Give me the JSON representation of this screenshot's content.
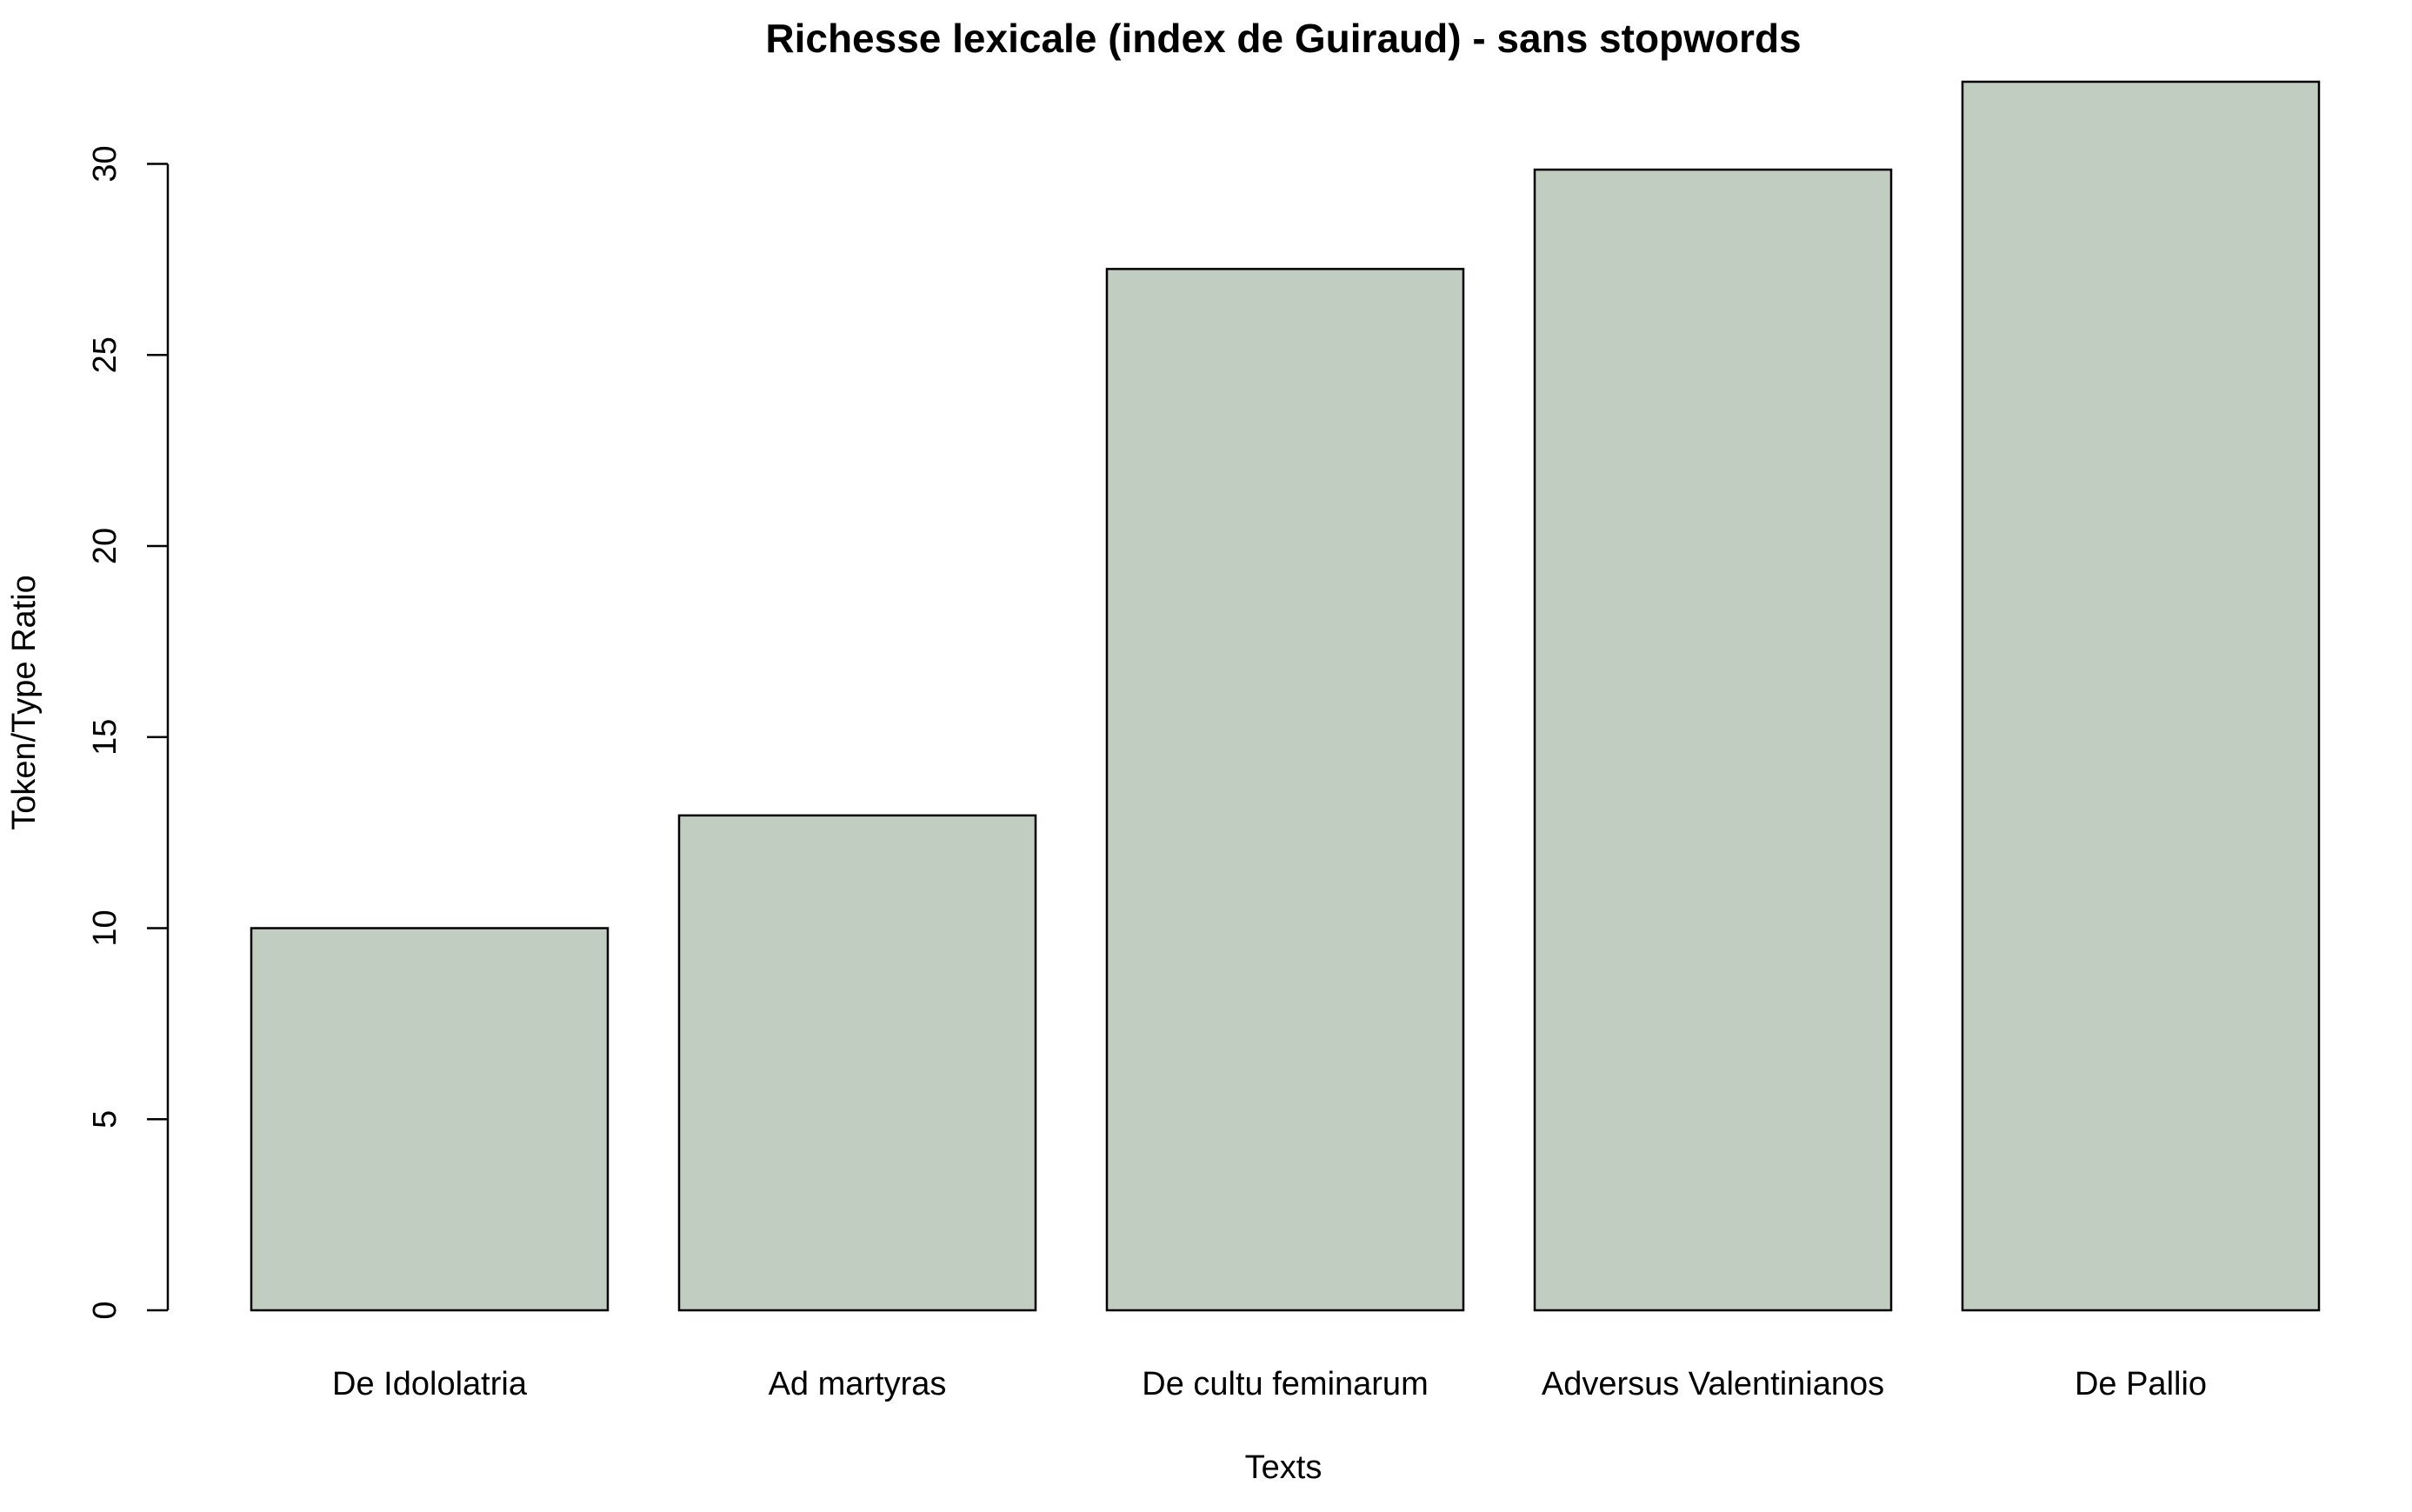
{
  "chart_data": {
    "type": "bar",
    "title": "Richesse lexicale (index de Guiraud) - sans stopwords",
    "xlabel": "Texts",
    "ylabel": "Token/Type Ratio",
    "categories": [
      "De Idololatria",
      "Ad martyras",
      "De cultu feminarum",
      "Adversus Valentinianos",
      "De Pallio"
    ],
    "values": [
      10.0,
      12.95,
      27.25,
      29.85,
      32.15
    ],
    "ylim": [
      0,
      30
    ],
    "yticks": [
      "0",
      "5",
      "10",
      "15",
      "20",
      "25",
      "30"
    ],
    "grid": false,
    "legend": "none",
    "bar_color": "#c2cdc1",
    "bar_edge_color": "#000000"
  }
}
